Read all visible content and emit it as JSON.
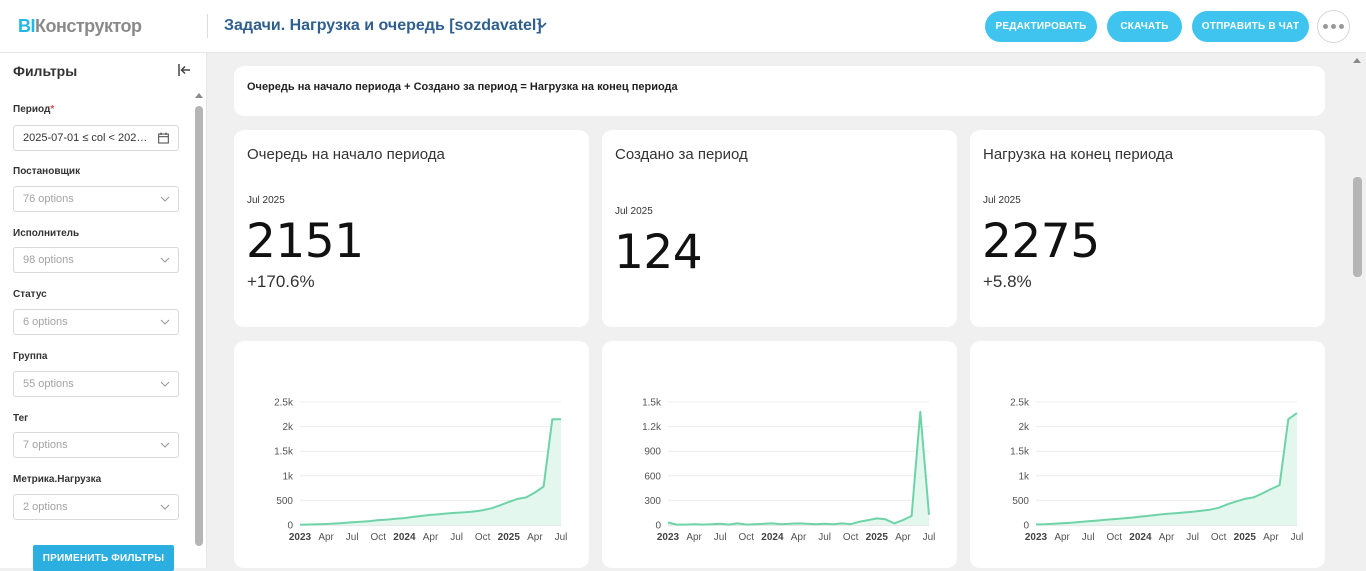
{
  "header": {
    "logo_bi": "BI",
    "logo_rest": "Конструктор",
    "title": "Задачи. Нагрузка и очередь [sozdavatel]",
    "buttons": {
      "edit": "РЕДАКТИРОВАТЬ",
      "download": "СКАЧАТЬ",
      "send": "ОТПРАВИТЬ В ЧАТ"
    },
    "more_icon": "ellipsis-icon"
  },
  "sidebar": {
    "title": "Фильтры",
    "filters": [
      {
        "label": "Период",
        "required": "*",
        "value": "2025-07-01 ≤ col < 202…",
        "icon": "calendar-icon"
      },
      {
        "label": "Постановщик",
        "placeholder": "76 options"
      },
      {
        "label": "Исполнитель",
        "placeholder": "98 options"
      },
      {
        "label": "Статус",
        "placeholder": "6 options"
      },
      {
        "label": "Группа",
        "placeholder": "55 options"
      },
      {
        "label": "Тег",
        "placeholder": "7 options"
      },
      {
        "label": "Метрика.Нагрузка",
        "placeholder": "2 options"
      }
    ],
    "apply": "ПРИМЕНИТЬ ФИЛЬТРЫ"
  },
  "formula": "Очередь на начало периода + Создано за период = Нагрузка на конец периода",
  "kpis": [
    {
      "title": "Очередь на начало периода",
      "period": "Jul 2025",
      "value": "2151",
      "delta": "+170.6%"
    },
    {
      "title": "Создано за период",
      "period": "Jul 2025",
      "value": "124",
      "delta": ""
    },
    {
      "title": "Нагрузка на конец периода",
      "period": "Jul 2025",
      "value": "2275",
      "delta": "+5.8%"
    }
  ],
  "colors": {
    "accent": "#3ec4ef",
    "apply": "#2baee0",
    "line": "#6fd3a8",
    "area": "#e3f7ee",
    "title": "#2f5f8f"
  },
  "chart_data": [
    {
      "type": "area",
      "title": "",
      "x_ticks": [
        "2023",
        "Apr",
        "Jul",
        "Oct",
        "2024",
        "Apr",
        "Jul",
        "Oct",
        "2025",
        "Apr",
        "Jul"
      ],
      "bold_ticks": [
        "2023",
        "2024",
        "2025"
      ],
      "y_ticks": [
        "0",
        "500",
        "1k",
        "1.5k",
        "2k",
        "2.5k"
      ],
      "ylim": [
        0,
        2500
      ],
      "x": [
        "2023-01",
        "2023-02",
        "2023-03",
        "2023-04",
        "2023-05",
        "2023-06",
        "2023-07",
        "2023-08",
        "2023-09",
        "2023-10",
        "2023-11",
        "2023-12",
        "2024-01",
        "2024-02",
        "2024-03",
        "2024-04",
        "2024-05",
        "2024-06",
        "2024-07",
        "2024-08",
        "2024-09",
        "2024-10",
        "2024-11",
        "2024-12",
        "2025-01",
        "2025-02",
        "2025-03",
        "2025-04",
        "2025-05",
        "2025-06",
        "2025-07"
      ],
      "values": [
        5,
        10,
        15,
        20,
        30,
        40,
        55,
        65,
        80,
        100,
        110,
        125,
        140,
        165,
        185,
        205,
        220,
        235,
        250,
        260,
        275,
        300,
        340,
        400,
        470,
        530,
        560,
        660,
        780,
        2151,
        2151
      ]
    },
    {
      "type": "area",
      "title": "",
      "x_ticks": [
        "2023",
        "Apr",
        "Jul",
        "Oct",
        "2024",
        "Apr",
        "Jul",
        "Oct",
        "2025",
        "Apr",
        "Jul"
      ],
      "bold_ticks": [
        "2023",
        "2024",
        "2025"
      ],
      "y_ticks": [
        "0",
        "300",
        "600",
        "900",
        "1.2k",
        "1.5k"
      ],
      "ylim": [
        0,
        1500
      ],
      "x": [
        "2023-01",
        "2023-02",
        "2023-03",
        "2023-04",
        "2023-05",
        "2023-06",
        "2023-07",
        "2023-08",
        "2023-09",
        "2023-10",
        "2023-11",
        "2023-12",
        "2024-01",
        "2024-02",
        "2024-03",
        "2024-04",
        "2024-05",
        "2024-06",
        "2024-07",
        "2024-08",
        "2024-09",
        "2024-10",
        "2024-11",
        "2024-12",
        "2025-01",
        "2025-02",
        "2025-03",
        "2025-04",
        "2025-05",
        "2025-06",
        "2025-07"
      ],
      "values": [
        30,
        5,
        5,
        10,
        5,
        10,
        15,
        5,
        20,
        5,
        10,
        15,
        20,
        10,
        15,
        20,
        15,
        10,
        15,
        10,
        20,
        10,
        40,
        60,
        80,
        70,
        20,
        60,
        110,
        1380,
        124
      ]
    },
    {
      "type": "area",
      "title": "",
      "x_ticks": [
        "2023",
        "Apr",
        "Jul",
        "Oct",
        "2024",
        "Apr",
        "Jul",
        "Oct",
        "2025",
        "Apr",
        "Jul"
      ],
      "bold_ticks": [
        "2023",
        "2024",
        "2025"
      ],
      "y_ticks": [
        "0",
        "500",
        "1k",
        "1.5k",
        "2k",
        "2.5k"
      ],
      "ylim": [
        0,
        2500
      ],
      "x": [
        "2023-01",
        "2023-02",
        "2023-03",
        "2023-04",
        "2023-05",
        "2023-06",
        "2023-07",
        "2023-08",
        "2023-09",
        "2023-10",
        "2023-11",
        "2023-12",
        "2024-01",
        "2024-02",
        "2024-03",
        "2024-04",
        "2024-05",
        "2024-06",
        "2024-07",
        "2024-08",
        "2024-09",
        "2024-10",
        "2024-11",
        "2024-12",
        "2025-01",
        "2025-02",
        "2025-03",
        "2025-04",
        "2025-05",
        "2025-06",
        "2025-07"
      ],
      "values": [
        10,
        15,
        25,
        35,
        45,
        60,
        75,
        90,
        105,
        120,
        135,
        150,
        170,
        190,
        210,
        225,
        240,
        255,
        270,
        290,
        310,
        350,
        420,
        480,
        530,
        560,
        640,
        730,
        810,
        2150,
        2275
      ]
    }
  ]
}
